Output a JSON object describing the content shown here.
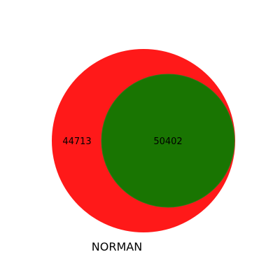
{
  "chart_data": {
    "type": "venn",
    "sets": [
      {
        "name": "NORMAN",
        "size": 95115,
        "color": "#ff0000",
        "opacity": 0.9
      },
      {
        "name": "",
        "size": 50402,
        "color": "#008000",
        "opacity": 0.9
      }
    ],
    "regions": [
      {
        "sets": [
          "NORMAN"
        ],
        "value": 44713,
        "label": "44713"
      },
      {
        "sets": [
          "NORMAN",
          "second"
        ],
        "value": 50402,
        "label": "50402"
      }
    ],
    "set_labels": [
      "NORMAN"
    ]
  }
}
